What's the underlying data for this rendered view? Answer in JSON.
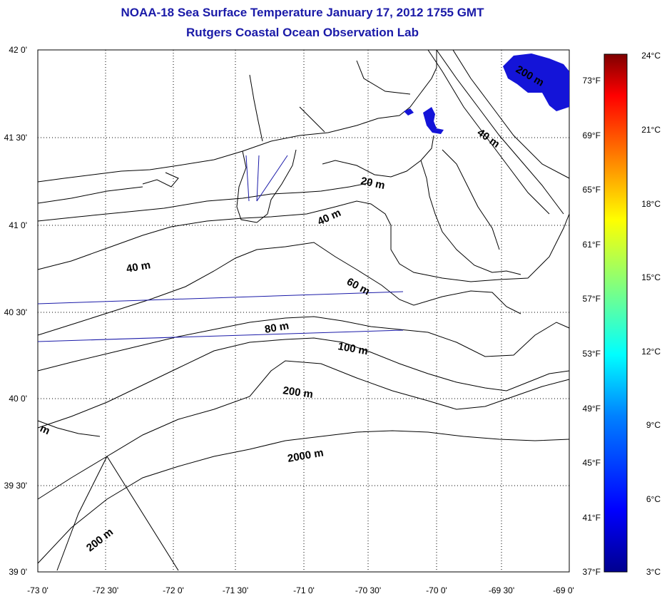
{
  "header": {
    "title": "NOAA-18 Sea Surface Temperature January 17, 2012 1755 GMT",
    "subtitle": "Rutgers Coastal Ocean Observation Lab"
  },
  "map": {
    "lat_labels": [
      "42 0'",
      "41 30'",
      "41 0'",
      "40 30'",
      "40 0'",
      "39 30'",
      "39 0'"
    ],
    "lon_labels": [
      "-73 0'",
      "-72 30'",
      "-72 0'",
      "-71 30'",
      "-71 0'",
      "-70 30'",
      "-70 0'",
      "-69 30'",
      "-69 0'"
    ],
    "fahrenheit_labels": [
      "73°F",
      "69°F",
      "65°F",
      "61°F",
      "57°F",
      "53°F",
      "49°F",
      "45°F",
      "41°F",
      "37°F"
    ],
    "contour_labels": [
      "20 m",
      "40 m",
      "40 m",
      "60 m",
      "80 m",
      "100 m",
      "200 m",
      "2000 m",
      "200 m",
      "200 m",
      "40 m",
      "m"
    ]
  },
  "colorbar": {
    "celsius_labels": [
      "24°C",
      "21°C",
      "18°C",
      "15°C",
      "12°C",
      "9°C",
      "6°C",
      "3°C"
    ],
    "min_c": 3,
    "max_c": 24,
    "colors": [
      "#7f0000",
      "#ff0000",
      "#ff8000",
      "#ffff00",
      "#80ff80",
      "#00ffff",
      "#0080ff",
      "#0000ff",
      "#00008f"
    ]
  }
}
